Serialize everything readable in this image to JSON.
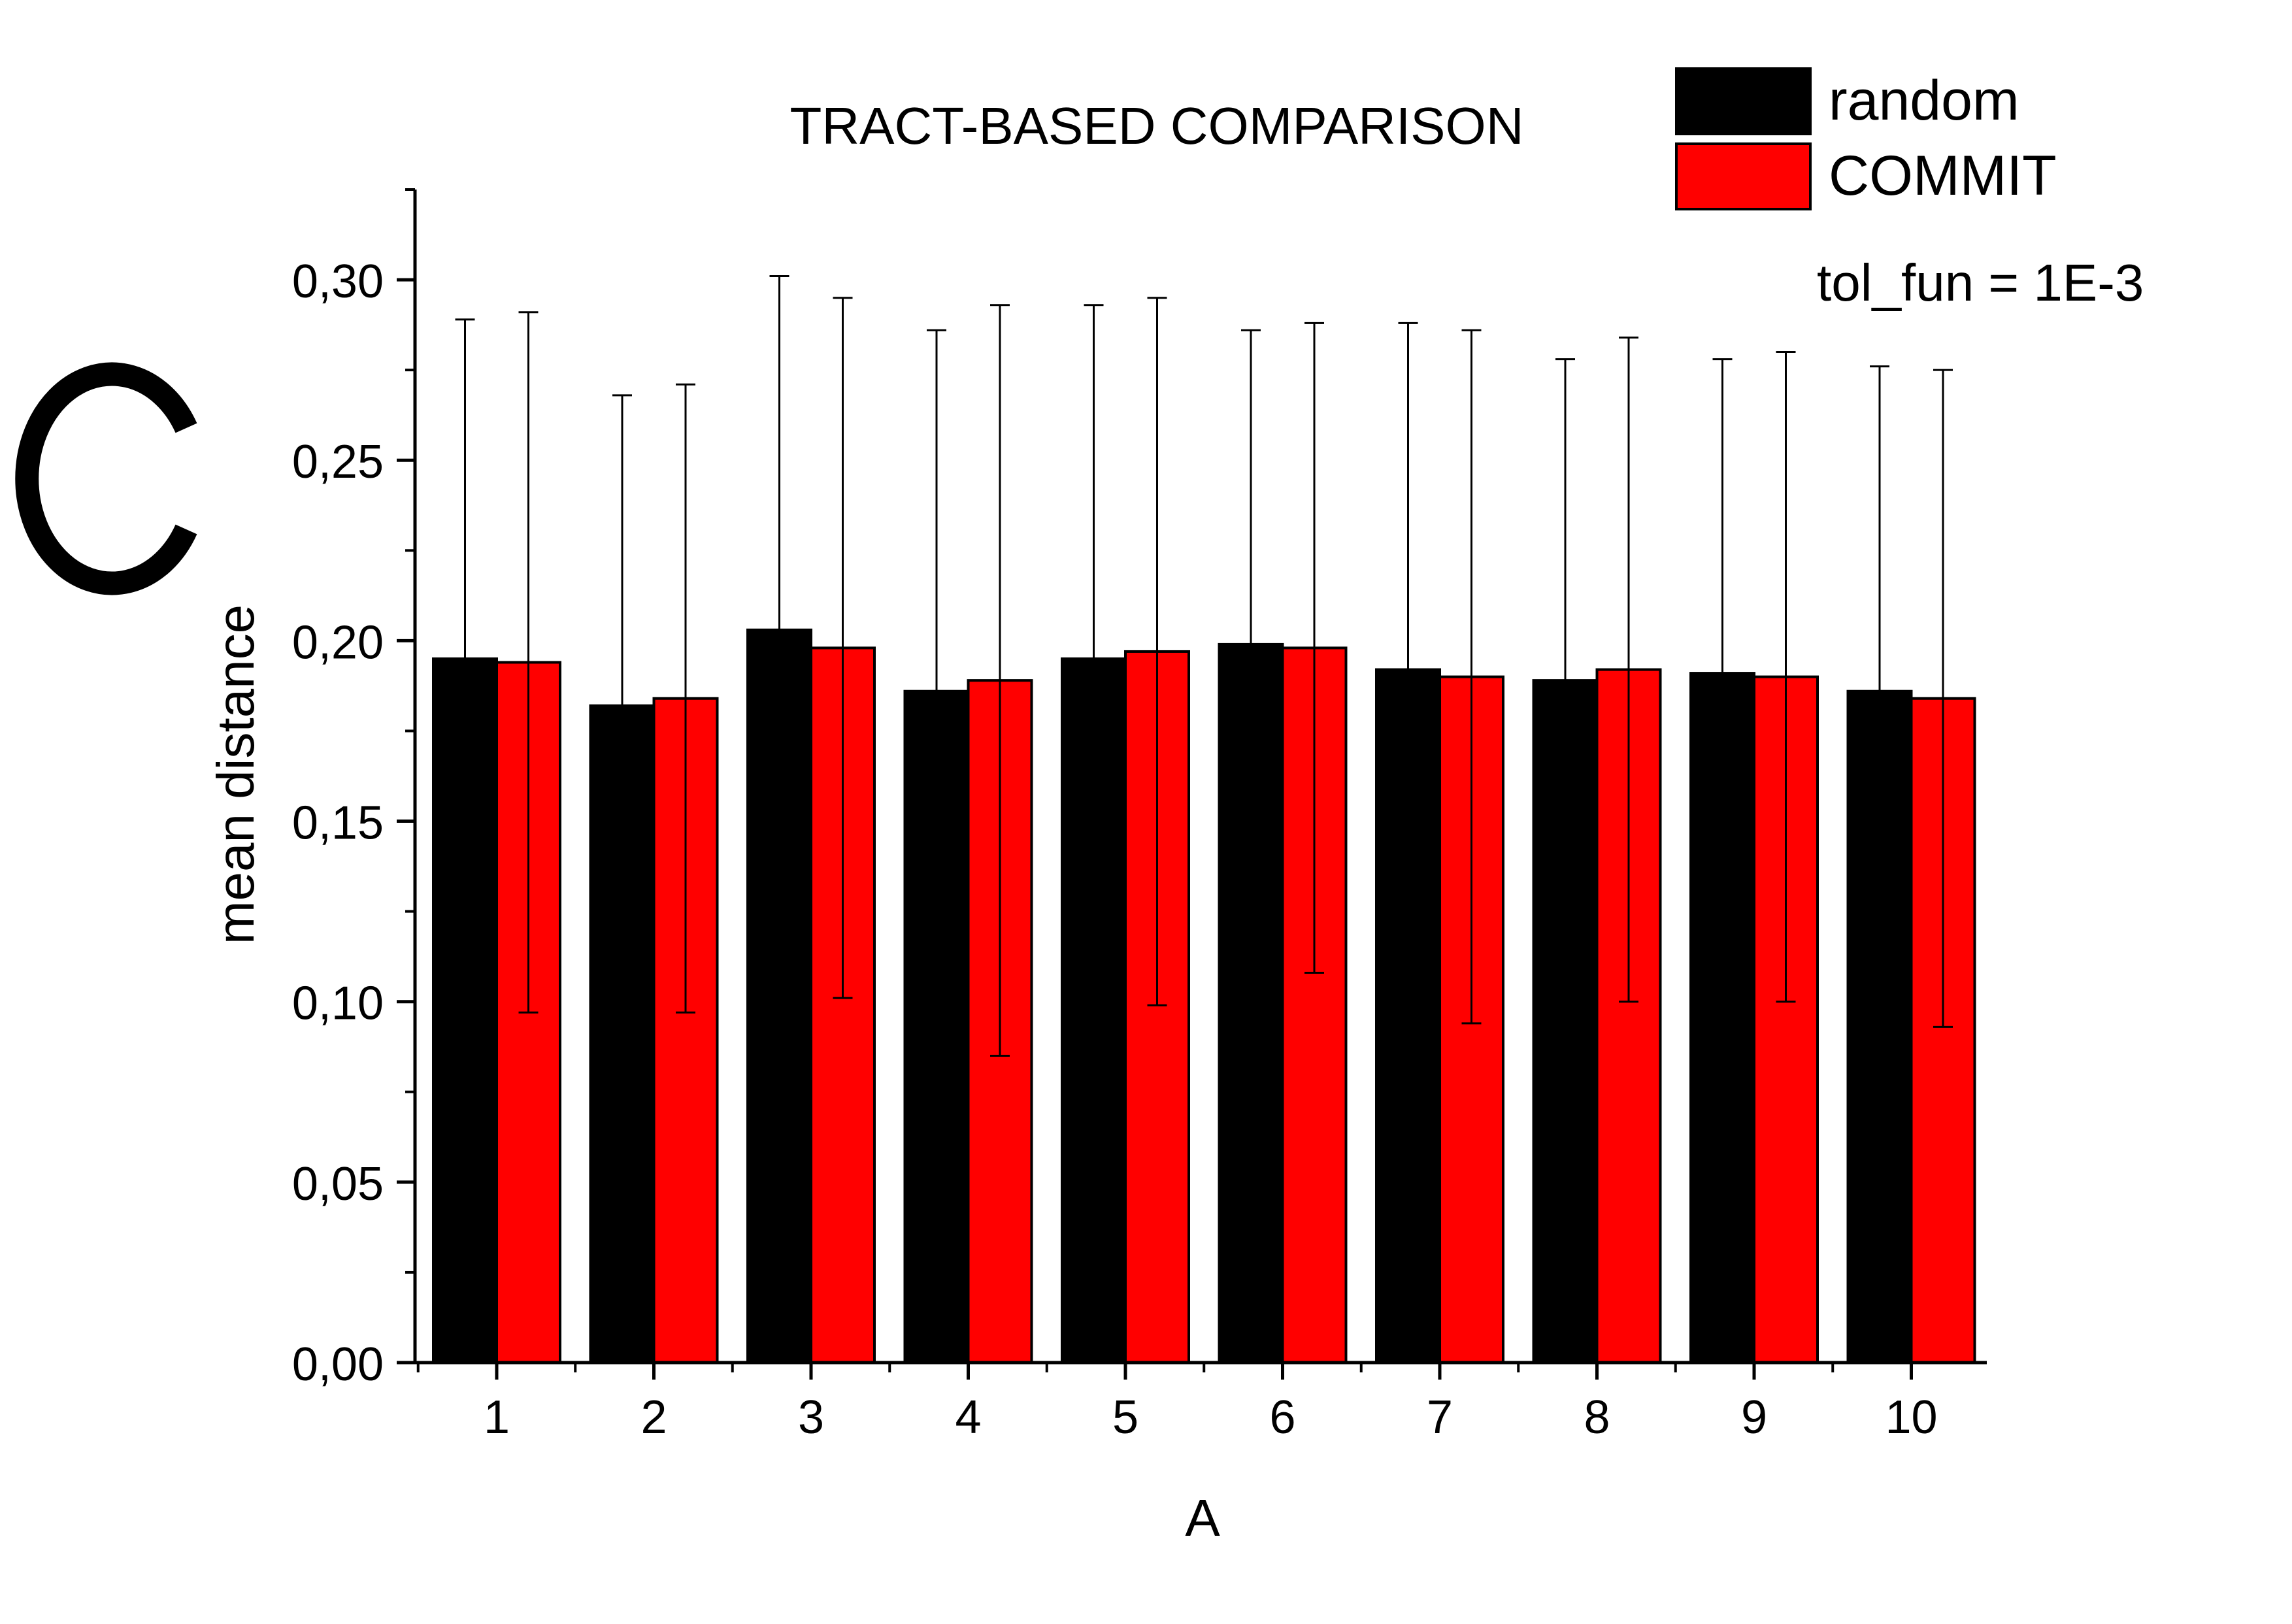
{
  "panel_letter": "C",
  "annotation": "tol_fun = 1E-3",
  "chart_data": {
    "type": "bar",
    "title": "TRACT-BASED COMPARISON",
    "xlabel": "A",
    "ylabel": "mean distance",
    "categories": [
      "1",
      "2",
      "3",
      "4",
      "5",
      "6",
      "7",
      "8",
      "9",
      "10"
    ],
    "ylim": [
      0,
      0.325
    ],
    "yticks": [
      {
        "value": 0.0,
        "label": "0,00"
      },
      {
        "value": 0.05,
        "label": "0,05"
      },
      {
        "value": 0.1,
        "label": "0,10"
      },
      {
        "value": 0.15,
        "label": "0,15"
      },
      {
        "value": 0.2,
        "label": "0,20"
      },
      {
        "value": 0.25,
        "label": "0,25"
      },
      {
        "value": 0.3,
        "label": "0,30"
      }
    ],
    "grid": false,
    "legend_position": "top-right",
    "series": [
      {
        "name": "random",
        "color": "#000000",
        "values": [
          0.195,
          0.182,
          0.203,
          0.186,
          0.195,
          0.199,
          0.192,
          0.189,
          0.191,
          0.186
        ],
        "errors": [
          0.094,
          0.086,
          0.098,
          0.1,
          0.098,
          0.087,
          0.096,
          0.089,
          0.087,
          0.09
        ]
      },
      {
        "name": "COMMIT",
        "color": "#ff0000",
        "values": [
          0.194,
          0.184,
          0.198,
          0.189,
          0.197,
          0.198,
          0.19,
          0.192,
          0.19,
          0.184
        ],
        "errors": [
          0.097,
          0.087,
          0.097,
          0.104,
          0.098,
          0.09,
          0.096,
          0.092,
          0.09,
          0.091
        ]
      }
    ]
  }
}
